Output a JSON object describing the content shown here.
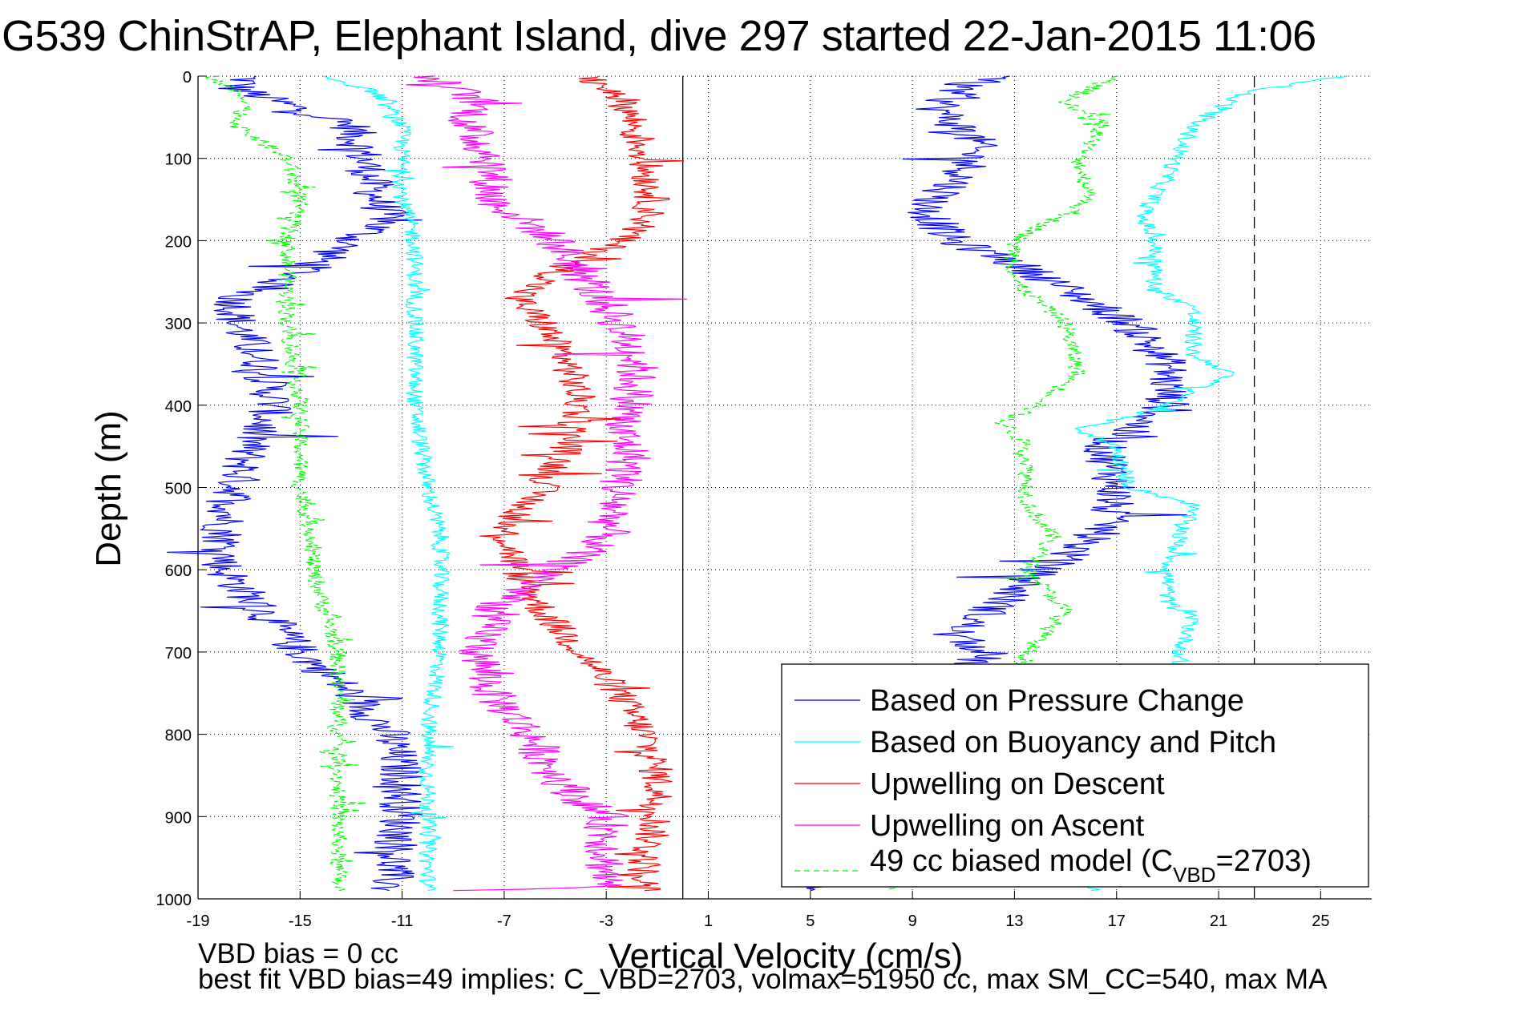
{
  "chart_data": {
    "type": "line",
    "title": "G539 ChinStrAP, Elephant Island, dive 297 started 22-Jan-2015 11:06",
    "xlabel": "Vertical Velocity (cm/s)",
    "ylabel": "Depth (m)",
    "xlim": [
      -19,
      27
    ],
    "ylim": [
      0,
      1000
    ],
    "y_reversed": true,
    "xticks": [
      -19,
      -15,
      -11,
      -7,
      -3,
      1,
      5,
      9,
      13,
      17,
      21,
      25
    ],
    "yticks": [
      0,
      100,
      200,
      300,
      400,
      500,
      600,
      700,
      800,
      900,
      1000
    ],
    "grid": true,
    "legend_position": "bottom-right",
    "reference_lines": [
      {
        "name": "zero-velocity",
        "x": 0,
        "style": "solid",
        "color": "#000000"
      },
      {
        "name": "reference-velocity",
        "x": 22.4,
        "style": "dashed",
        "color": "#000000"
      }
    ],
    "series": [
      {
        "name": "Based on Pressure Change",
        "color": "#0000ff",
        "style": "solid",
        "segments": [
          {
            "part": "descent",
            "points": [
              [
                0,
                -17
              ],
              [
                15,
                -17.5
              ],
              [
                30,
                -16
              ],
              [
                60,
                -13
              ],
              [
                100,
                -12.5
              ],
              [
                150,
                -12
              ],
              [
                175,
                -11.5
              ],
              [
                200,
                -13
              ],
              [
                240,
                -15
              ],
              [
                270,
                -17.5
              ],
              [
                300,
                -17.5
              ],
              [
                350,
                -16.5
              ],
              [
                400,
                -16
              ],
              [
                450,
                -17
              ],
              [
                500,
                -17.5
              ],
              [
                550,
                -18
              ],
              [
                600,
                -18
              ],
              [
                650,
                -16.5
              ],
              [
                700,
                -15
              ],
              [
                750,
                -13
              ],
              [
                800,
                -11.5
              ],
              [
                850,
                -11
              ],
              [
                900,
                -11
              ],
              [
                950,
                -11.3
              ],
              [
                990,
                -11.5
              ]
            ]
          },
          {
            "part": "ascent",
            "points": [
              [
                990,
                5
              ],
              [
                850,
                9
              ],
              [
                720,
                11
              ],
              [
                700,
                12
              ],
              [
                680,
                10.5
              ],
              [
                640,
                12.5
              ],
              [
                600,
                14
              ],
              [
                585,
                15
              ],
              [
                550,
                16.5
              ],
              [
                500,
                17
              ],
              [
                450,
                16.5
              ],
              [
                420,
                18
              ],
              [
                400,
                19
              ],
              [
                350,
                19
              ],
              [
                300,
                17.5
              ],
              [
                250,
                14.5
              ],
              [
                220,
                12.5
              ],
              [
                200,
                10.5
              ],
              [
                160,
                9.5
              ],
              [
                120,
                11
              ],
              [
                80,
                11.5
              ],
              [
                40,
                10
              ],
              [
                10,
                11
              ],
              [
                0,
                13
              ]
            ]
          }
        ]
      },
      {
        "name": "Based on Buoyancy and Pitch",
        "color": "#00ffff",
        "style": "solid",
        "segments": [
          {
            "part": "descent",
            "points": [
              [
                0,
                -14
              ],
              [
                20,
                -12
              ],
              [
                60,
                -11
              ],
              [
                100,
                -11
              ],
              [
                150,
                -11
              ],
              [
                200,
                -10.5
              ],
              [
                300,
                -10.5
              ],
              [
                400,
                -10.5
              ],
              [
                500,
                -10
              ],
              [
                560,
                -9.5
              ],
              [
                600,
                -9.5
              ],
              [
                700,
                -9.5
              ],
              [
                800,
                -10
              ],
              [
                900,
                -10
              ],
              [
                990,
                -10
              ]
            ]
          },
          {
            "part": "ascent",
            "points": [
              [
                990,
                16
              ],
              [
                850,
                19
              ],
              [
                700,
                19.5
              ],
              [
                660,
                20
              ],
              [
                640,
                19
              ],
              [
                600,
                19
              ],
              [
                560,
                19.5
              ],
              [
                520,
                20
              ],
              [
                500,
                17.5
              ],
              [
                450,
                17
              ],
              [
                430,
                15.5
              ],
              [
                400,
                19
              ],
              [
                360,
                21.5
              ],
              [
                340,
                20
              ],
              [
                280,
                20
              ],
              [
                260,
                18.5
              ],
              [
                200,
                18.5
              ],
              [
                170,
                18
              ],
              [
                120,
                19
              ],
              [
                60,
                20
              ],
              [
                20,
                22
              ],
              [
                0,
                26
              ]
            ]
          }
        ]
      },
      {
        "name": "Upwelling on Descent",
        "color": "#ff0000",
        "style": "solid",
        "segments": [
          {
            "part": "full",
            "points": [
              [
                0,
                -4
              ],
              [
                20,
                -2.5
              ],
              [
                50,
                -2
              ],
              [
                100,
                -1.5
              ],
              [
                150,
                -1.2
              ],
              [
                180,
                -1.5
              ],
              [
                210,
                -3
              ],
              [
                240,
                -5
              ],
              [
                270,
                -6.5
              ],
              [
                300,
                -5.5
              ],
              [
                350,
                -4.5
              ],
              [
                400,
                -4
              ],
              [
                450,
                -4.5
              ],
              [
                500,
                -5.5
              ],
              [
                550,
                -7
              ],
              [
                600,
                -6.5
              ],
              [
                650,
                -5.5
              ],
              [
                700,
                -4
              ],
              [
                750,
                -2.5
              ],
              [
                800,
                -1.5
              ],
              [
                850,
                -1
              ],
              [
                900,
                -1
              ],
              [
                950,
                -1.5
              ],
              [
                990,
                -1.5
              ]
            ]
          }
        ]
      },
      {
        "name": "Upwelling on Ascent",
        "color": "#ff00ff",
        "style": "solid",
        "segments": [
          {
            "part": "full",
            "points": [
              [
                0,
                -10
              ],
              [
                30,
                -8
              ],
              [
                60,
                -8.5
              ],
              [
                100,
                -7.5
              ],
              [
                150,
                -7.5
              ],
              [
                200,
                -5
              ],
              [
                240,
                -4
              ],
              [
                280,
                -3
              ],
              [
                300,
                -2.5
              ],
              [
                350,
                -1.8
              ],
              [
                400,
                -2
              ],
              [
                430,
                -2.5
              ],
              [
                460,
                -2
              ],
              [
                500,
                -2.5
              ],
              [
                560,
                -3
              ],
              [
                600,
                -5
              ],
              [
                650,
                -7.5
              ],
              [
                700,
                -8
              ],
              [
                750,
                -7.5
              ],
              [
                800,
                -6
              ],
              [
                850,
                -5
              ],
              [
                880,
                -4
              ],
              [
                900,
                -3
              ],
              [
                950,
                -3
              ],
              [
                985,
                -3
              ],
              [
                990,
                -9
              ]
            ]
          }
        ]
      },
      {
        "name": "49 cc biased model (C_VBD=2703)",
        "color": "#00ff00",
        "style": "dashed",
        "segments": [
          {
            "part": "descent",
            "points": [
              [
                0,
                -18.5
              ],
              [
                30,
                -17
              ],
              [
                60,
                -17.5
              ],
              [
                100,
                -15.5
              ],
              [
                150,
                -15
              ],
              [
                200,
                -15.5
              ],
              [
                300,
                -15.5
              ],
              [
                400,
                -15
              ],
              [
                500,
                -15
              ],
              [
                560,
                -14.5
              ],
              [
                600,
                -14.5
              ],
              [
                700,
                -13.5
              ],
              [
                800,
                -13.5
              ],
              [
                900,
                -13.5
              ],
              [
                990,
                -13.5
              ]
            ]
          },
          {
            "part": "ascent",
            "points": [
              [
                990,
                8
              ],
              [
                850,
                12
              ],
              [
                700,
                13.5
              ],
              [
                650,
                15
              ],
              [
                600,
                13.5
              ],
              [
                560,
                14.5
              ],
              [
                520,
                13.5
              ],
              [
                450,
                13.5
              ],
              [
                420,
                12.5
              ],
              [
                400,
                14
              ],
              [
                360,
                15.5
              ],
              [
                300,
                15
              ],
              [
                250,
                13
              ],
              [
                200,
                13
              ],
              [
                150,
                16
              ],
              [
                100,
                15.5
              ],
              [
                60,
                16.5
              ],
              [
                30,
                15
              ],
              [
                0,
                17
              ]
            ]
          }
        ]
      }
    ]
  },
  "legend": {
    "items": [
      {
        "label": "Based on Pressure Change",
        "color": "#0000ff",
        "dashed": false
      },
      {
        "label": "Based on Buoyancy and Pitch",
        "color": "#00ffff",
        "dashed": false
      },
      {
        "label": "Upwelling on Descent",
        "color": "#ff0000",
        "dashed": false
      },
      {
        "label": "Upwelling on Ascent",
        "color": "#ff00ff",
        "dashed": false
      },
      {
        "label": "49 cc biased model (C",
        "subscript": "VBD",
        "suffix": "=2703)",
        "color": "#00ff00",
        "dashed": true
      }
    ]
  },
  "notes": {
    "line1": "VBD bias = 0 cc",
    "line2": "best fit VBD bias=49 implies: C_VBD=2703, volmax=51950 cc, max SM_CC=540, max MA"
  }
}
